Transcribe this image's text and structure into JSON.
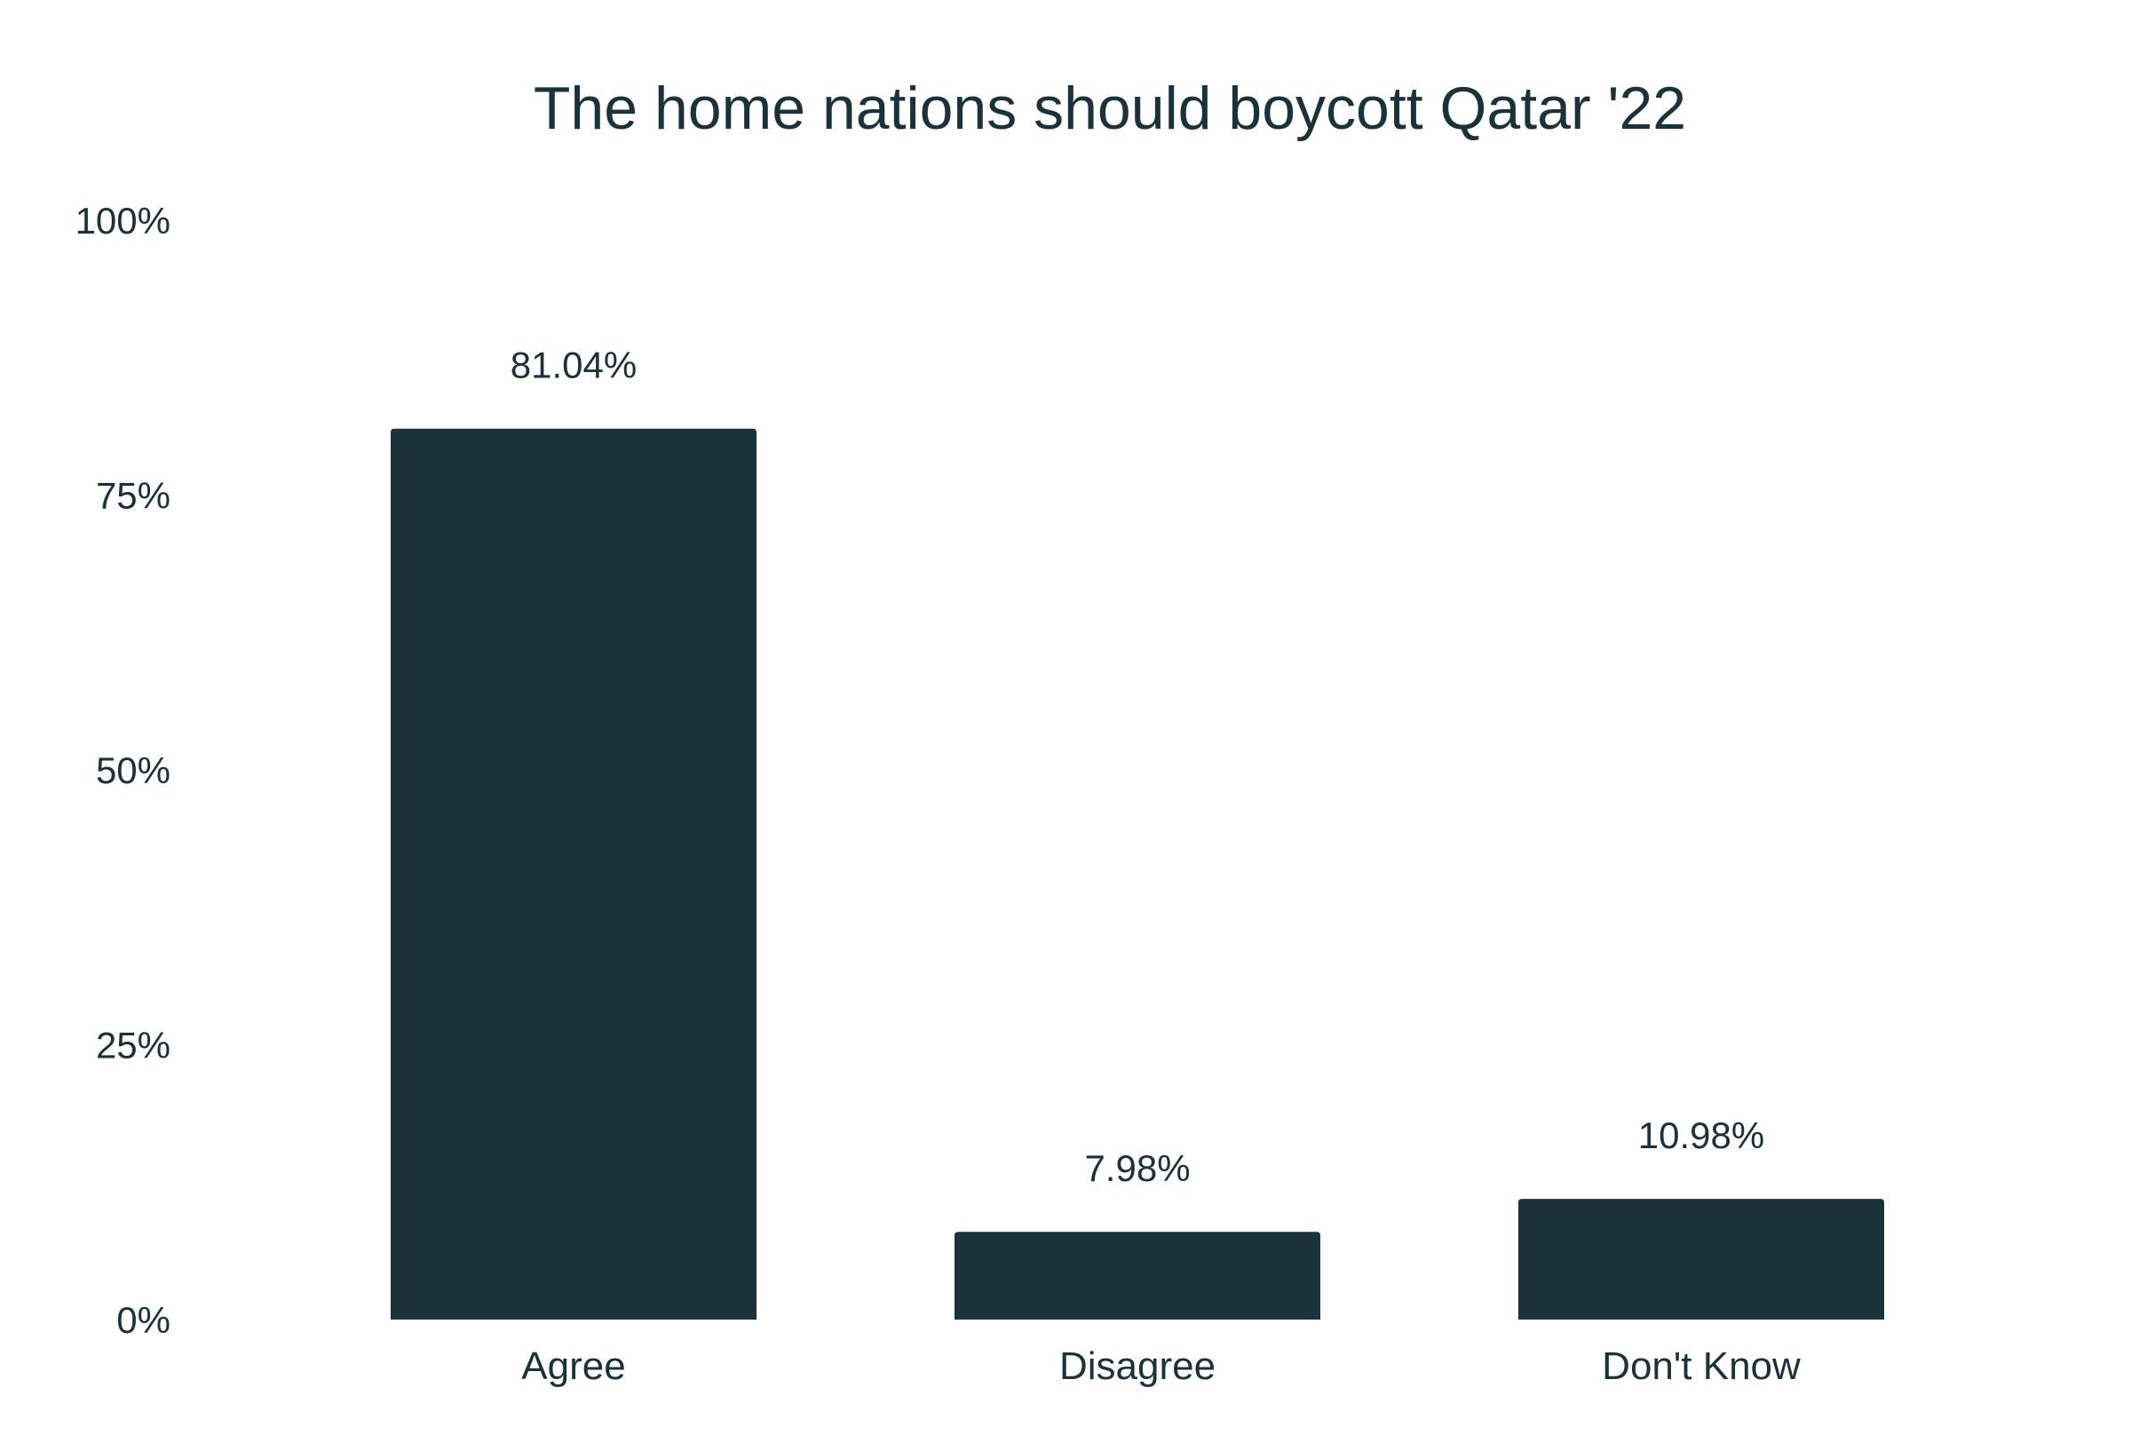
{
  "chart_data": {
    "type": "bar",
    "title": "The home nations should boycott Qatar '22",
    "xlabel": "",
    "ylabel": "",
    "categories": [
      "Agree",
      "Disagree",
      "Don't Know"
    ],
    "values": [
      81.04,
      7.98,
      10.98
    ],
    "value_labels": [
      "81.04%",
      "7.98%",
      "10.98%"
    ],
    "ylim": [
      0,
      100
    ],
    "yticks": [
      0,
      25,
      50,
      75,
      100
    ],
    "ytick_labels": [
      "0%",
      "25%",
      "50%",
      "75%",
      "100%"
    ],
    "grid": false,
    "legend": "none",
    "colors": {
      "bar": "#1c323a",
      "text": "#1c323a",
      "background": "#ffffff"
    }
  }
}
